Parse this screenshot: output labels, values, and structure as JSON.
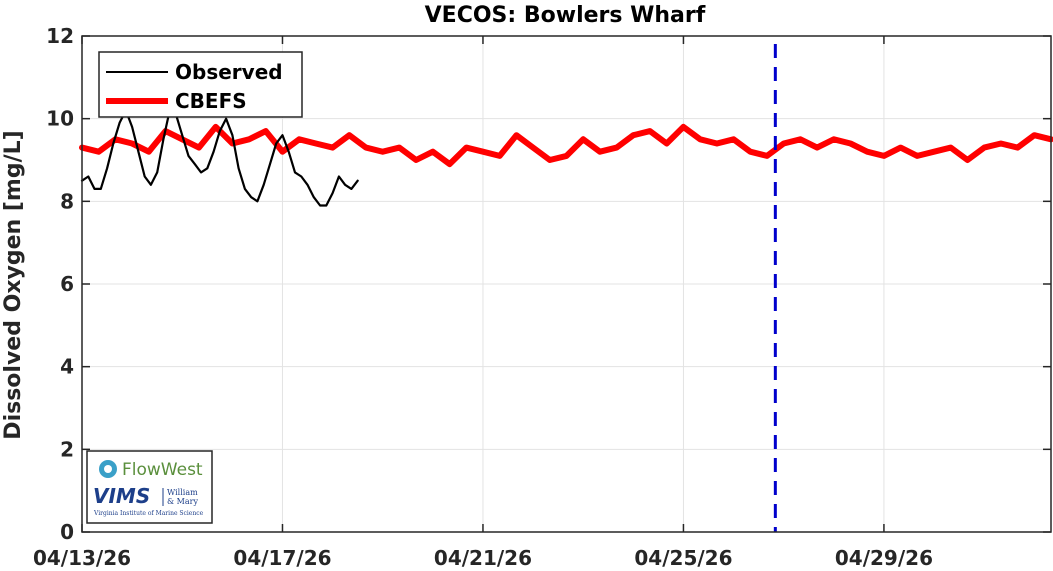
{
  "chart_data": {
    "type": "line",
    "title": "VECOS: Bowlers Wharf",
    "xlabel": "",
    "ylabel": "Dissolved Oxygen [mg/L]",
    "x_range": [
      "2026-04-13T00:00",
      "2026-05-02T08:00"
    ],
    "ylim": [
      0,
      12
    ],
    "x_ticks": [
      "04/13/26",
      "04/17/26",
      "04/21/26",
      "04/25/26",
      "04/29/26"
    ],
    "x_tick_dates": [
      "2026-04-13T00:00",
      "2026-04-17T00:00",
      "2026-04-21T00:00",
      "2026-04-25T00:00",
      "2026-04-29T00:00"
    ],
    "y_ticks": [
      "0",
      "2",
      "4",
      "6",
      "8",
      "10",
      "12"
    ],
    "grid": true,
    "legend_position": "top-left",
    "forecast_start_line": {
      "x": "2026-04-26T20:00",
      "color": "#0000cc"
    },
    "series": [
      {
        "name": "Observed",
        "color": "#000000",
        "x": [
          "2026-04-13T00:00",
          "2026-04-13T03:00",
          "2026-04-13T06:00",
          "2026-04-13T09:00",
          "2026-04-13T12:00",
          "2026-04-13T15:00",
          "2026-04-13T18:00",
          "2026-04-13T21:00",
          "2026-04-14T00:00",
          "2026-04-14T03:00",
          "2026-04-14T06:00",
          "2026-04-14T09:00",
          "2026-04-14T12:00",
          "2026-04-14T15:00",
          "2026-04-14T18:00",
          "2026-04-14T21:00",
          "2026-04-15T00:00",
          "2026-04-15T03:00",
          "2026-04-15T06:00",
          "2026-04-15T09:00",
          "2026-04-15T12:00",
          "2026-04-15T15:00",
          "2026-04-15T18:00",
          "2026-04-15T21:00",
          "2026-04-16T00:00",
          "2026-04-16T03:00",
          "2026-04-16T06:00",
          "2026-04-16T09:00",
          "2026-04-16T12:00",
          "2026-04-16T15:00",
          "2026-04-16T18:00",
          "2026-04-16T21:00",
          "2026-04-17T00:00",
          "2026-04-17T03:00",
          "2026-04-17T06:00",
          "2026-04-17T09:00",
          "2026-04-17T12:00",
          "2026-04-17T15:00",
          "2026-04-17T18:00",
          "2026-04-17T21:00",
          "2026-04-18T00:00",
          "2026-04-18T03:00",
          "2026-04-18T06:00",
          "2026-04-18T09:00",
          "2026-04-18T12:00"
        ],
        "y": [
          8.5,
          8.6,
          8.3,
          8.3,
          8.8,
          9.4,
          9.9,
          10.2,
          9.8,
          9.2,
          8.6,
          8.4,
          8.7,
          9.5,
          10.2,
          10.1,
          9.6,
          9.1,
          8.9,
          8.7,
          8.8,
          9.2,
          9.7,
          10.0,
          9.6,
          8.8,
          8.3,
          8.1,
          8.0,
          8.4,
          8.9,
          9.4,
          9.6,
          9.2,
          8.7,
          8.6,
          8.4,
          8.1,
          7.9,
          7.9,
          8.2,
          8.6,
          8.4,
          8.3,
          8.5
        ]
      },
      {
        "name": "CBEFS",
        "color": "#ff0000",
        "x": [
          "2026-04-13T00:00",
          "2026-04-13T08:00",
          "2026-04-13T16:00",
          "2026-04-14T00:00",
          "2026-04-14T08:00",
          "2026-04-14T16:00",
          "2026-04-15T00:00",
          "2026-04-15T08:00",
          "2026-04-15T16:00",
          "2026-04-16T00:00",
          "2026-04-16T08:00",
          "2026-04-16T16:00",
          "2026-04-17T00:00",
          "2026-04-17T08:00",
          "2026-04-17T16:00",
          "2026-04-18T00:00",
          "2026-04-18T08:00",
          "2026-04-18T16:00",
          "2026-04-19T00:00",
          "2026-04-19T08:00",
          "2026-04-19T16:00",
          "2026-04-20T00:00",
          "2026-04-20T08:00",
          "2026-04-20T16:00",
          "2026-04-21T00:00",
          "2026-04-21T08:00",
          "2026-04-21T16:00",
          "2026-04-22T00:00",
          "2026-04-22T08:00",
          "2026-04-22T16:00",
          "2026-04-23T00:00",
          "2026-04-23T08:00",
          "2026-04-23T16:00",
          "2026-04-24T00:00",
          "2026-04-24T08:00",
          "2026-04-24T16:00",
          "2026-04-25T00:00",
          "2026-04-25T08:00",
          "2026-04-25T16:00",
          "2026-04-26T00:00",
          "2026-04-26T08:00",
          "2026-04-26T16:00",
          "2026-04-27T00:00",
          "2026-04-27T08:00",
          "2026-04-27T16:00",
          "2026-04-28T00:00",
          "2026-04-28T08:00",
          "2026-04-28T16:00",
          "2026-04-29T00:00",
          "2026-04-29T08:00",
          "2026-04-29T16:00",
          "2026-04-30T00:00",
          "2026-04-30T08:00",
          "2026-04-30T16:00",
          "2026-05-01T00:00",
          "2026-05-01T08:00",
          "2026-05-01T16:00",
          "2026-05-02T00:00",
          "2026-05-02T08:00"
        ],
        "y": [
          9.3,
          9.2,
          9.5,
          9.4,
          9.2,
          9.7,
          9.5,
          9.3,
          9.8,
          9.4,
          9.5,
          9.7,
          9.2,
          9.5,
          9.4,
          9.3,
          9.6,
          9.3,
          9.2,
          9.3,
          9.0,
          9.2,
          8.9,
          9.3,
          9.2,
          9.1,
          9.6,
          9.3,
          9.0,
          9.1,
          9.5,
          9.2,
          9.3,
          9.6,
          9.7,
          9.4,
          9.8,
          9.5,
          9.4,
          9.5,
          9.2,
          9.1,
          9.4,
          9.5,
          9.3,
          9.5,
          9.4,
          9.2,
          9.1,
          9.3,
          9.1,
          9.2,
          9.3,
          9.0,
          9.3,
          9.4,
          9.3,
          9.6,
          9.5
        ]
      }
    ]
  },
  "logo": {
    "flowwest_label": "FlowWest",
    "vims_label": "VIMS",
    "wm_line1": "William",
    "wm_line2": "& Mary",
    "vims_subtitle": "Virginia Institute of Marine Science"
  }
}
